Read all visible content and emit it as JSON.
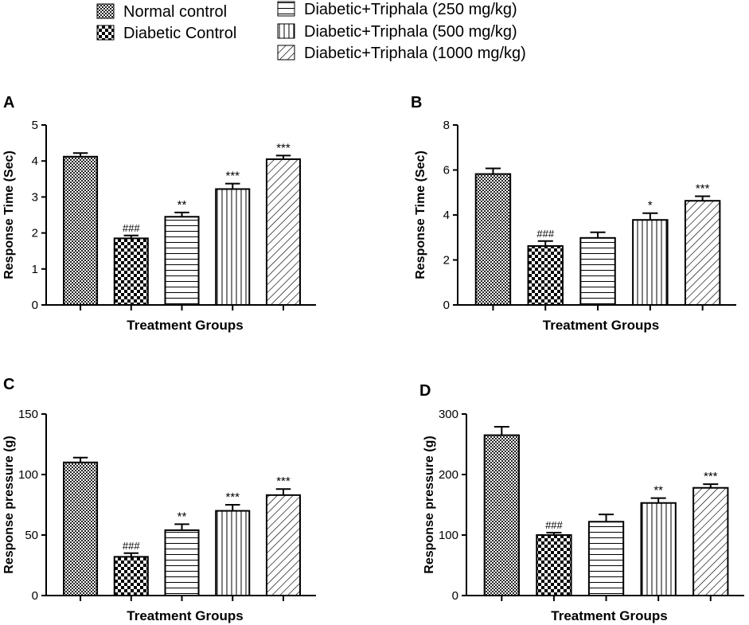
{
  "legend": {
    "items": [
      {
        "label": "Normal control",
        "pattern": "dense-check"
      },
      {
        "label": "Diabetic Control",
        "pattern": "checker"
      },
      {
        "label": "Diabetic+Triphala (250 mg/kg)",
        "pattern": "horizontal"
      },
      {
        "label": "Diabetic+Triphala (500 mg/kg)",
        "pattern": "vertical"
      },
      {
        "label": "Diabetic+Triphala (1000 mg/kg)",
        "pattern": "diagonal"
      }
    ]
  },
  "chart_data": [
    {
      "panel": "A",
      "type": "bar",
      "xlabel": "Treatment Groups",
      "ylabel": "Response Time (Sec)",
      "ylim": [
        0,
        5
      ],
      "yticks": [
        "0",
        "1",
        "2",
        "3",
        "4",
        "5"
      ],
      "categories": [
        "Normal control",
        "Diabetic Control",
        "Diabetic+Triphala (250 mg/kg)",
        "Diabetic+Triphala (500 mg/kg)",
        "Diabetic+Triphala (1000 mg/kg)"
      ],
      "values": [
        4.12,
        1.85,
        2.45,
        3.22,
        4.05
      ],
      "errors": [
        0.1,
        0.08,
        0.12,
        0.15,
        0.1
      ],
      "annotations": [
        "",
        "###",
        "**",
        "***",
        "***"
      ]
    },
    {
      "panel": "B",
      "type": "bar",
      "xlabel": "Treatment Groups",
      "ylabel": "Response Time (Sec)",
      "ylim": [
        0,
        8
      ],
      "yticks": [
        "0",
        "2",
        "4",
        "6",
        "8"
      ],
      "categories": [
        "Normal control",
        "Diabetic Control",
        "Diabetic+Triphala (250 mg/kg)",
        "Diabetic+Triphala (500 mg/kg)",
        "Diabetic+Triphala (1000 mg/kg)"
      ],
      "values": [
        5.82,
        2.62,
        2.98,
        3.78,
        4.63
      ],
      "errors": [
        0.25,
        0.22,
        0.25,
        0.3,
        0.2
      ],
      "annotations": [
        "",
        "###",
        "",
        "*",
        "***"
      ]
    },
    {
      "panel": "C",
      "type": "bar",
      "xlabel": "Treatment Groups",
      "ylabel": "Response pressure (g)",
      "ylim": [
        0,
        150
      ],
      "yticks": [
        "0",
        "50",
        "100",
        "150"
      ],
      "categories": [
        "Normal control",
        "Diabetic Control",
        "Diabetic+Triphala (250 mg/kg)",
        "Diabetic+Triphala (500 mg/kg)",
        "Diabetic+Triphala (1000 mg/kg)"
      ],
      "values": [
        110,
        32,
        54,
        70,
        83
      ],
      "errors": [
        4,
        3,
        5,
        5,
        5
      ],
      "annotations": [
        "",
        "###",
        "**",
        "***",
        "***"
      ]
    },
    {
      "panel": "D",
      "type": "bar",
      "xlabel": "Treatment Groups",
      "ylabel": "Response pressure (g)",
      "ylim": [
        0,
        300
      ],
      "yticks": [
        "0",
        "100",
        "200",
        "300"
      ],
      "categories": [
        "Normal control",
        "Diabetic Control",
        "Diabetic+Triphala (250 mg/kg)",
        "Diabetic+Triphala (500 mg/kg)",
        "Diabetic+Triphala (1000 mg/kg)"
      ],
      "values": [
        265,
        100,
        122,
        153,
        178
      ],
      "errors": [
        14,
        4,
        12,
        8,
        6
      ],
      "annotations": [
        "",
        "###",
        "",
        "**",
        "***"
      ]
    }
  ]
}
